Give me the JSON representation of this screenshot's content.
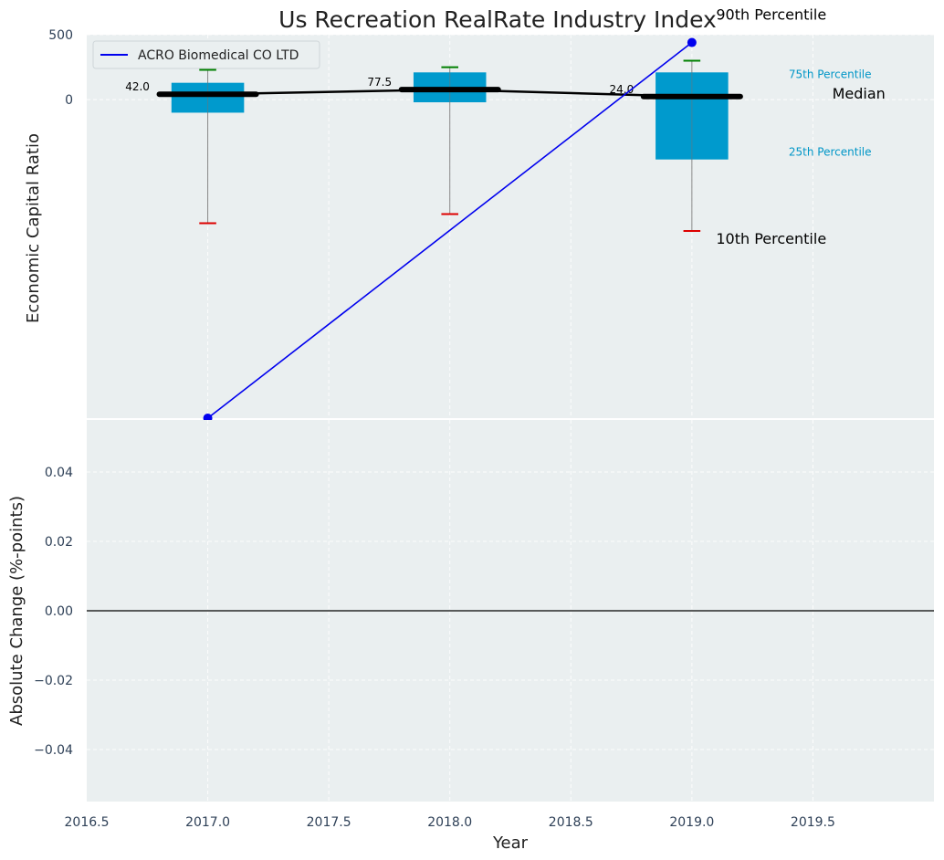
{
  "chart_data": [
    {
      "type": "box",
      "title": "Us Recreation RealRate Industry Index",
      "ylabel": "Economic Capital Ratio",
      "xlim": [
        2016.5,
        2020.0
      ],
      "ylim": [
        -2450,
        500
      ],
      "x_ticks": [
        2016.5,
        2017.0,
        2017.5,
        2018.0,
        2018.5,
        2019.0,
        2019.5
      ],
      "y_ticks": [
        0,
        500
      ],
      "grid": true,
      "legend_position": "top-left",
      "boxes": [
        {
          "x": 2017,
          "p10": -950,
          "p25": -100,
          "median": 42.0,
          "p75": 130,
          "p90": 230,
          "median_label": "42.0"
        },
        {
          "x": 2018,
          "p10": -880,
          "p25": -20,
          "median": 77.5,
          "p75": 210,
          "p90": 250,
          "median_label": "77.5"
        },
        {
          "x": 2019,
          "p10": -1010,
          "p25": -460,
          "median": 24.0,
          "p75": 210,
          "p90": 300,
          "median_label": "24.0"
        }
      ],
      "series": [
        {
          "name": "ACRO Biomedical CO LTD",
          "x": [
            2017,
            2019
          ],
          "y": [
            -2450,
            440
          ],
          "color": "#0000ee"
        }
      ],
      "annotations": {
        "p90": "90th Percentile",
        "p75": "75th Percentile",
        "median": "Median",
        "p25": "25th Percentile",
        "p10": "10th Percentile"
      },
      "colors": {
        "box": "#009acd",
        "median": "#000000",
        "p90_cap": "#008000",
        "p10_cap": "#dd0000",
        "whisker": "#888888",
        "background": "#eaeff0",
        "pct_label": "#0096c7"
      }
    },
    {
      "type": "line",
      "xlabel": "Year",
      "ylabel": "Absolute Change (%-points)",
      "xlim": [
        2016.5,
        2020.0
      ],
      "ylim": [
        -0.055,
        0.055
      ],
      "y_ticks": [
        0.04,
        0.02,
        0.0,
        -0.02,
        -0.04
      ],
      "y_tick_labels": [
        "0.04",
        "0.02",
        "0.00",
        "−0.02",
        "−0.04"
      ],
      "x_tick_labels": [
        "2016.5",
        "2017.0",
        "2017.5",
        "2018.0",
        "2018.5",
        "2019.0",
        "2019.5"
      ],
      "reference_line": 0.0,
      "grid": true
    }
  ]
}
